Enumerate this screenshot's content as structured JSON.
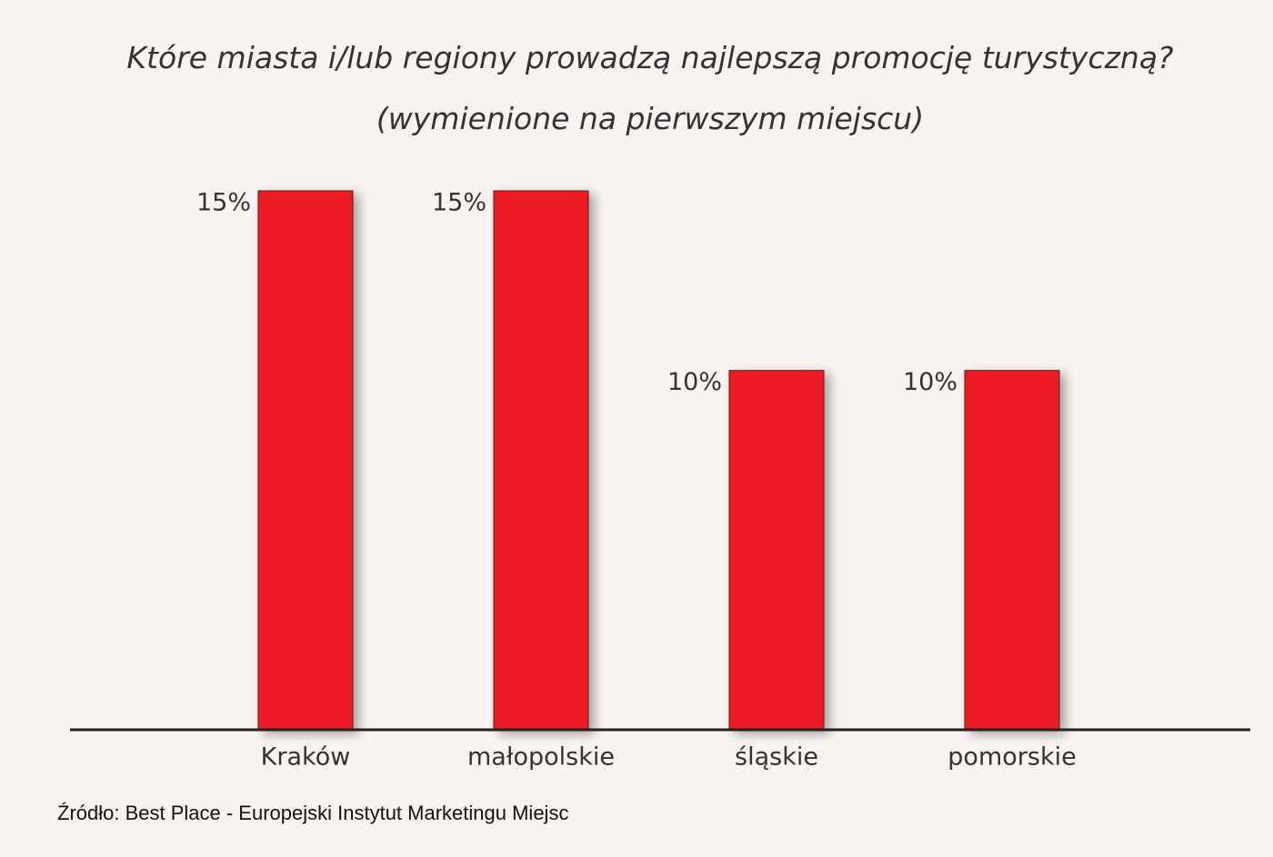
{
  "chart_data": {
    "type": "bar",
    "title": "Które miasta i/lub regiony prowadzą najlepszą promocję turystyczną? (wymienione na pierwszym miejscu)",
    "categories": [
      "Kraków",
      "małopolskie",
      "śląskie",
      "pomorskie"
    ],
    "values": [
      15,
      15,
      10,
      10
    ],
    "value_labels": [
      "15%",
      "15%",
      "10%",
      "10%"
    ],
    "color": "#ed1c24",
    "ylim": [
      0,
      15
    ],
    "source": "Źródło: Best Place - Europejski Instytut Marketingu Miejsc"
  }
}
